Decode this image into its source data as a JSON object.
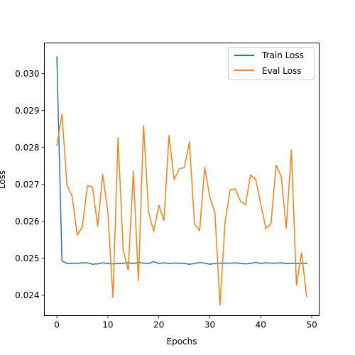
{
  "chart_data": {
    "type": "line",
    "title": "",
    "xlabel": "Epochs",
    "ylabel": "Loss",
    "xlim": [
      -2.45,
      51.45
    ],
    "ylim": [
      0.02345,
      0.03083
    ],
    "xticks": [
      0,
      10,
      20,
      30,
      40,
      50
    ],
    "xtick_labels": [
      "0",
      "10",
      "20",
      "30",
      "40",
      "50"
    ],
    "yticks": [
      0.024,
      0.025,
      0.026,
      0.027,
      0.028,
      0.029,
      0.03
    ],
    "ytick_labels": [
      "0.024",
      "0.025",
      "0.026",
      "0.027",
      "0.028",
      "0.029",
      "0.030"
    ],
    "grid": false,
    "legend_position": "top-right",
    "x": [
      0,
      1,
      2,
      3,
      4,
      5,
      6,
      7,
      8,
      9,
      10,
      11,
      12,
      13,
      14,
      15,
      16,
      17,
      18,
      19,
      20,
      21,
      22,
      23,
      24,
      25,
      26,
      27,
      28,
      29,
      30,
      31,
      32,
      33,
      34,
      35,
      36,
      37,
      38,
      39,
      40,
      41,
      42,
      43,
      44,
      45,
      46,
      47,
      48,
      49
    ],
    "series": [
      {
        "name": "Train Loss",
        "color": "#1f77b4",
        "values": [
          0.03045,
          0.02493,
          0.02486,
          0.02487,
          0.02486,
          0.02488,
          0.02488,
          0.02484,
          0.02485,
          0.02488,
          0.02486,
          0.02485,
          0.02486,
          0.02487,
          0.02488,
          0.02486,
          0.02489,
          0.02487,
          0.02486,
          0.02491,
          0.02486,
          0.02488,
          0.02486,
          0.02487,
          0.02487,
          0.02486,
          0.02484,
          0.02486,
          0.02489,
          0.02487,
          0.02484,
          0.02486,
          0.02487,
          0.02487,
          0.02487,
          0.02488,
          0.02486,
          0.02485,
          0.02486,
          0.02489,
          0.02486,
          0.02488,
          0.02487,
          0.02487,
          0.02488,
          0.02486,
          0.02486,
          0.02486,
          0.02487,
          0.02486
        ]
      },
      {
        "name": "Eval Loss",
        "color": "#ff7f0e",
        "values": [
          0.02806,
          0.0289,
          0.02697,
          0.02668,
          0.02563,
          0.02585,
          0.02697,
          0.02693,
          0.02587,
          0.02727,
          0.02625,
          0.02395,
          0.02826,
          0.02523,
          0.02468,
          0.02736,
          0.0244,
          0.02859,
          0.02625,
          0.02573,
          0.02644,
          0.02602,
          0.02833,
          0.02713,
          0.02742,
          0.02746,
          0.02815,
          0.02593,
          0.02575,
          0.02746,
          0.02666,
          0.02624,
          0.02374,
          0.02599,
          0.02686,
          0.02688,
          0.02655,
          0.02645,
          0.02726,
          0.02714,
          0.02646,
          0.02581,
          0.02593,
          0.02752,
          0.02723,
          0.02582,
          0.02793,
          0.02428,
          0.02515,
          0.02396
        ]
      }
    ]
  }
}
